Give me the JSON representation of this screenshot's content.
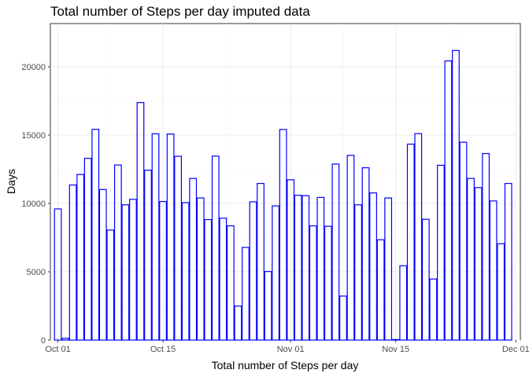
{
  "chart_data": {
    "type": "bar",
    "title": "Total number of Steps per day imputed data",
    "xlabel": "Total number of Steps per day",
    "ylabel": "Days",
    "x_start": "2012-10-01",
    "x_ticks": [
      {
        "date": "2012-10-01",
        "label": "Oct 01"
      },
      {
        "date": "2012-10-15",
        "label": "Oct 15"
      },
      {
        "date": "2012-11-01",
        "label": "Nov 01"
      },
      {
        "date": "2012-11-15",
        "label": "Nov 15"
      },
      {
        "date": "2012-12-01",
        "label": "Dec 01"
      }
    ],
    "y_ticks": [
      0,
      5000,
      10000,
      15000,
      20000
    ],
    "xlim": [
      "2012-09-30",
      "2012-12-01"
    ],
    "ylim": [
      0,
      22300
    ],
    "grid": true,
    "bar_color": "#0000ff",
    "values": [
      9600,
      130,
      11350,
      12120,
      13300,
      15420,
      11020,
      8050,
      12810,
      9900,
      10300,
      17380,
      12430,
      15100,
      10140,
      15080,
      13450,
      10060,
      11830,
      10400,
      8820,
      13460,
      8920,
      8360,
      2490,
      6780,
      10120,
      11460,
      5020,
      9820,
      15410,
      11730,
      10600,
      10570,
      8360,
      10440,
      8330,
      12880,
      3220,
      13520,
      9900,
      12610,
      10770,
      7340,
      10400,
      40,
      5440,
      14340,
      15110,
      8840,
      4470,
      12790,
      20430,
      21190,
      14480,
      11830,
      11160,
      13650,
      10180,
      7050,
      11460
    ]
  }
}
